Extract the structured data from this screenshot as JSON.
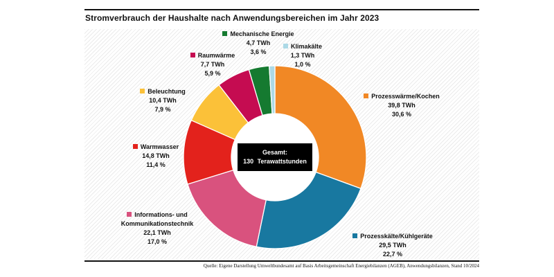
{
  "title": "Stromverbrauch der Haushalte nach Anwendungsbereichen im Jahr 2023",
  "source": "Quelle: Eigene Darstellung Umweltbundesamt auf Basis Arbeitsgemeinschaft Energiebilanzen (AGEB), Anwendungsbilanzen, Stand 10/2024",
  "center_label": {
    "line1": "Gesamt:",
    "line2": "130 Terawattstunden"
  },
  "chart_data": {
    "type": "pie",
    "donut": true,
    "title": "Stromverbrauch der Haushalte nach Anwendungsbereichen im Jahr 2023",
    "unit": "TWh",
    "total_twh": 130,
    "total_label": "Gesamt: 130 Terawattstunden",
    "start_angle_deg": 0,
    "direction": "clockwise",
    "slices": [
      {
        "label": "Prozesswärme/Kochen",
        "twh": 39.8,
        "twh_label": "39,8 TWh",
        "percent": 30.6,
        "percent_label": "30,6 %",
        "color": "#F18825"
      },
      {
        "label": "Prozesskälte/Kühlgeräte",
        "twh": 29.5,
        "twh_label": "29,5 TWh",
        "percent": 22.7,
        "percent_label": "22,7 %",
        "color": "#1878A0"
      },
      {
        "label": "Informations- und Kommunikationstechnik",
        "twh": 22.1,
        "twh_label": "22,1 TWh",
        "percent": 17.0,
        "percent_label": "17,0 %",
        "color": "#D9527E"
      },
      {
        "label": "Warmwasser",
        "twh": 14.8,
        "twh_label": "14,8 TWh",
        "percent": 11.4,
        "percent_label": "11,4 %",
        "color": "#E3221C"
      },
      {
        "label": "Beleuchtung",
        "twh": 10.4,
        "twh_label": "10,4 TWh",
        "percent": 7.9,
        "percent_label": "7,9 %",
        "color": "#FBC139"
      },
      {
        "label": "Raumwärme",
        "twh": 7.7,
        "twh_label": "7,7 TWh",
        "percent": 5.9,
        "percent_label": "5,9 %",
        "color": "#C50C51"
      },
      {
        "label": "Mechanische Energie",
        "twh": 4.7,
        "twh_label": "4,7 TWh",
        "percent": 3.6,
        "percent_label": "3,6 %",
        "color": "#157A30"
      },
      {
        "label": "Klimakälte",
        "twh": 1.3,
        "twh_label": "1,3 TWh",
        "percent": 1.0,
        "percent_label": "1,0 %",
        "color": "#ACD9E6"
      }
    ]
  }
}
